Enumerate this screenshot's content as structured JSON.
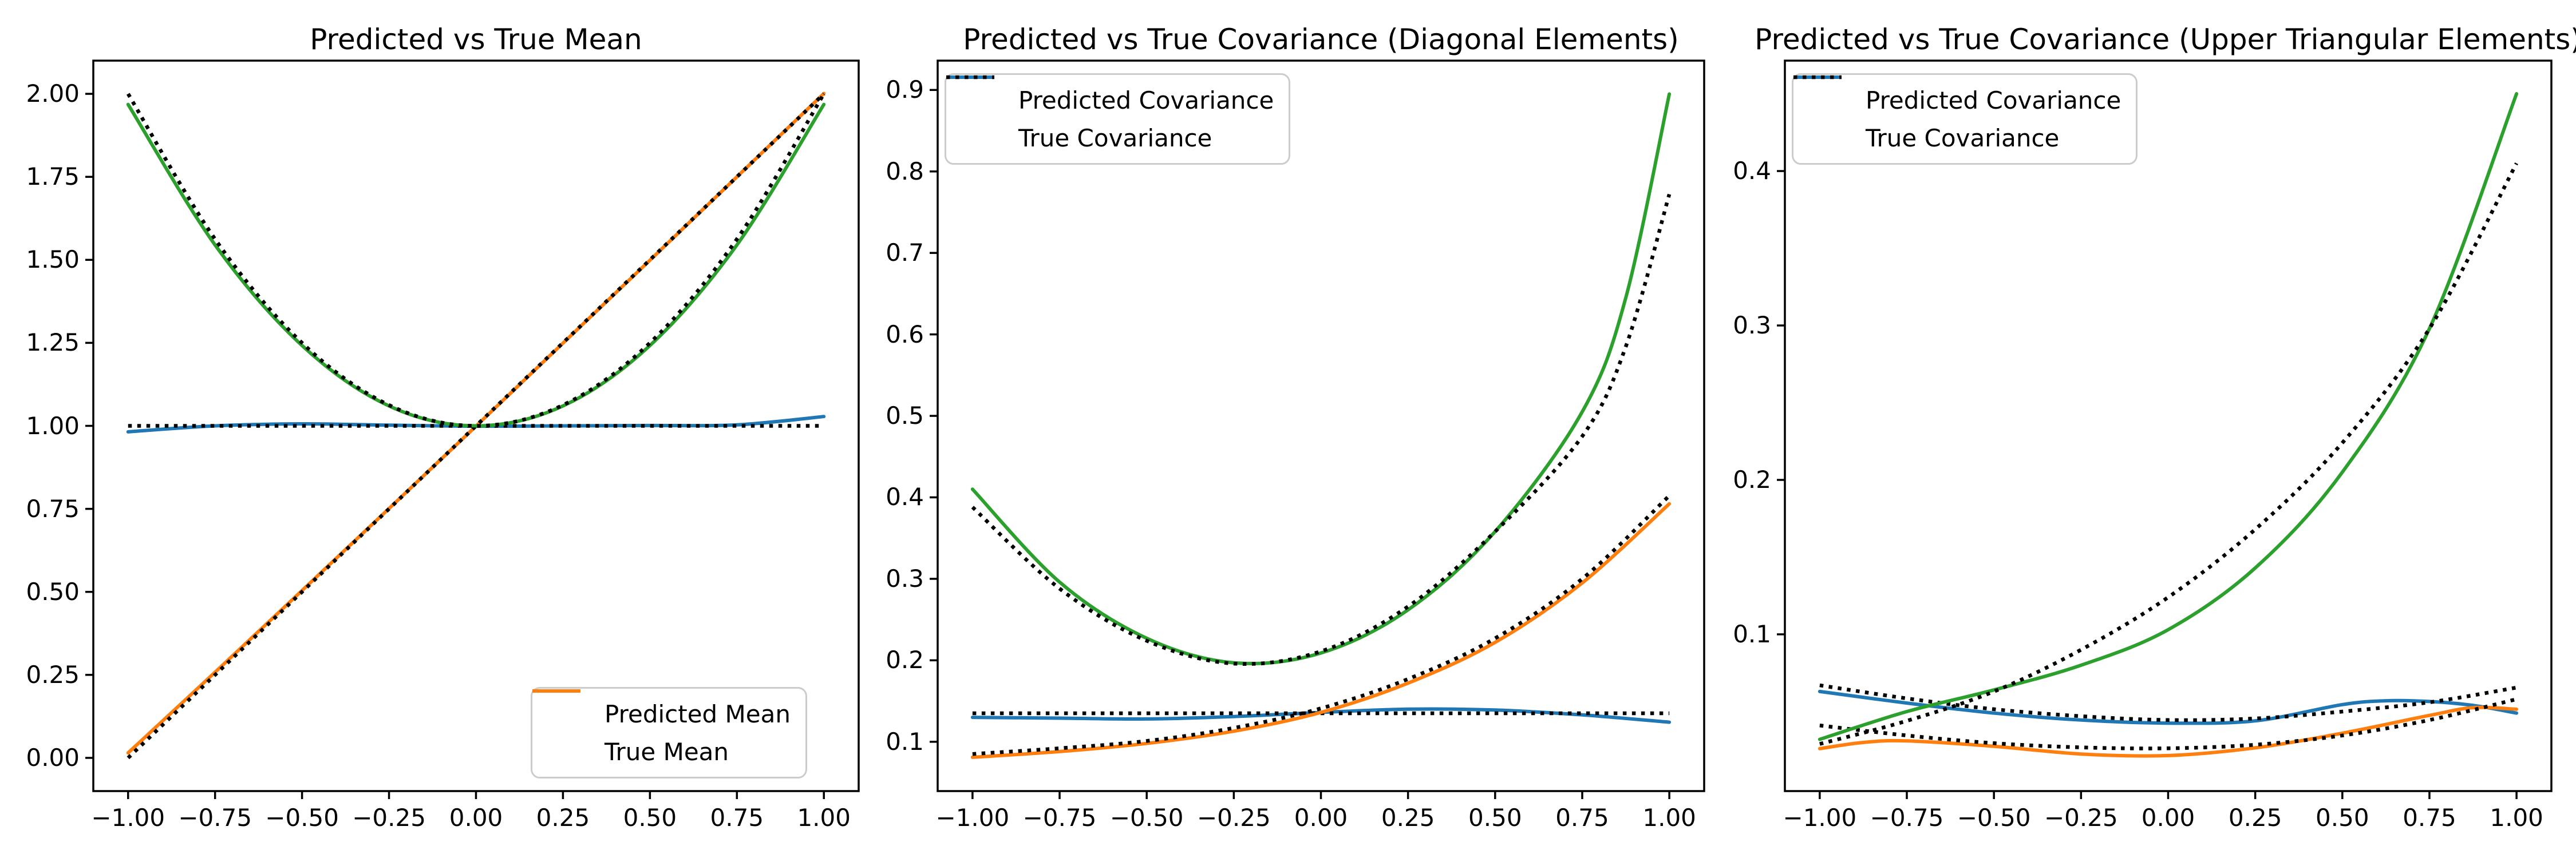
{
  "figure": {
    "background": "#ffffff"
  },
  "colors": {
    "predicted_c0": "#1f77b4",
    "predicted_c1": "#ff7f0e",
    "predicted_c2": "#2ca02c",
    "true_line": "#000000",
    "axis": "#000000",
    "legend_border": "#cccccc"
  },
  "chart_data": [
    {
      "type": "line",
      "title": "Predicted vs True Mean",
      "xlabel": "",
      "ylabel": "",
      "xlim": [
        -1.1,
        1.1
      ],
      "ylim": [
        -0.1,
        2.1
      ],
      "grid": false,
      "xticks": {
        "values": [
          -1,
          -0.75,
          -0.5,
          -0.25,
          0,
          0.25,
          0.5,
          0.75,
          1
        ],
        "labels": [
          "−1.00",
          "−0.75",
          "−0.50",
          "−0.25",
          "0.00",
          "0.25",
          "0.50",
          "0.75",
          "1.00"
        ]
      },
      "yticks": {
        "values": [
          0,
          0.25,
          0.5,
          0.75,
          1,
          1.25,
          1.5,
          1.75,
          2
        ],
        "labels": [
          "0.00",
          "0.25",
          "0.50",
          "0.75",
          "1.00",
          "1.25",
          "1.50",
          "1.75",
          "2.00"
        ]
      },
      "legend": {
        "location": "lower right",
        "entries": [
          {
            "label": "Predicted Mean",
            "color": "#1f77b4",
            "dash": false
          },
          {
            "label": "True Mean",
            "color": "#ff7f0e",
            "dash": false
          }
        ]
      },
      "series": [
        {
          "name": "predicted-mean-dim0",
          "color": "#1f77b4",
          "dash": false,
          "x": [
            -1,
            -0.75,
            -0.5,
            -0.25,
            0,
            0.25,
            0.5,
            0.75,
            1
          ],
          "y": [
            0.982,
            1.0,
            1.006,
            1.002,
            0.999,
            1.0,
            1.001,
            1.003,
            1.028
          ]
        },
        {
          "name": "true-mean-dim0",
          "color": "#000000",
          "dash": true,
          "x": [
            -1,
            1
          ],
          "y": [
            1.0,
            1.0
          ]
        },
        {
          "name": "predicted-mean-dim1",
          "color": "#ff7f0e",
          "dash": false,
          "x": [
            -1,
            -0.75,
            -0.5,
            -0.25,
            0,
            0.25,
            0.5,
            0.75,
            1
          ],
          "y": [
            0.015,
            0.258,
            0.504,
            0.751,
            0.999,
            1.249,
            1.499,
            1.75,
            2.001
          ]
        },
        {
          "name": "true-mean-dim1",
          "color": "#000000",
          "dash": true,
          "x": [
            -1,
            1
          ],
          "y": [
            0.0,
            2.0
          ]
        },
        {
          "name": "predicted-mean-dim2",
          "color": "#2ca02c",
          "dash": false,
          "x": [
            -1,
            -0.75,
            -0.5,
            -0.25,
            0,
            0.25,
            0.5,
            0.75,
            1
          ],
          "y": [
            1.968,
            1.545,
            1.242,
            1.06,
            1.0,
            1.06,
            1.242,
            1.545,
            1.968
          ]
        },
        {
          "name": "true-mean-dim2",
          "color": "#000000",
          "dash": true,
          "x": [
            -1,
            -0.75,
            -0.5,
            -0.25,
            0,
            0.25,
            0.5,
            0.75,
            1
          ],
          "y": [
            2.0,
            1.5625,
            1.25,
            1.0625,
            1.0,
            1.0625,
            1.25,
            1.5625,
            2.0
          ]
        }
      ]
    },
    {
      "type": "line",
      "title": "Predicted vs True Covariance (Diagonal Elements)",
      "xlabel": "",
      "ylabel": "",
      "xlim": [
        -1.1,
        1.1
      ],
      "ylim": [
        0.0395,
        0.936
      ],
      "grid": false,
      "xticks": {
        "values": [
          -1,
          -0.75,
          -0.5,
          -0.25,
          0,
          0.25,
          0.5,
          0.75,
          1
        ],
        "labels": [
          "−1.00",
          "−0.75",
          "−0.50",
          "−0.25",
          "0.00",
          "0.25",
          "0.50",
          "0.75",
          "1.00"
        ]
      },
      "yticks": {
        "values": [
          0.1,
          0.2,
          0.3,
          0.4,
          0.5,
          0.6,
          0.7,
          0.8,
          0.9
        ],
        "labels": [
          "0.1",
          "0.2",
          "0.3",
          "0.4",
          "0.5",
          "0.6",
          "0.7",
          "0.8",
          "0.9"
        ]
      },
      "legend": {
        "location": "upper left",
        "entries": [
          {
            "label": "Predicted Covariance",
            "color": "#1f77b4",
            "dash": false
          },
          {
            "label": "True Covariance",
            "color": "#000000",
            "dash": true
          }
        ]
      },
      "series": [
        {
          "name": "predicted-cov-diag0",
          "color": "#1f77b4",
          "dash": false,
          "x": [
            -1,
            -0.75,
            -0.5,
            -0.25,
            0,
            0.25,
            0.5,
            0.75,
            1
          ],
          "y": [
            0.13,
            0.129,
            0.128,
            0.131,
            0.136,
            0.14,
            0.139,
            0.133,
            0.124
          ]
        },
        {
          "name": "true-cov-diag0",
          "color": "#000000",
          "dash": true,
          "x": [
            -1,
            1
          ],
          "y": [
            0.135,
            0.135
          ]
        },
        {
          "name": "predicted-cov-diag1",
          "color": "#ff7f0e",
          "dash": false,
          "x": [
            -1,
            -0.75,
            -0.5,
            -0.25,
            0,
            0.25,
            0.5,
            0.75,
            1
          ],
          "y": [
            0.081,
            0.088,
            0.098,
            0.113,
            0.136,
            0.172,
            0.222,
            0.295,
            0.392
          ]
        },
        {
          "name": "true-cov-diag1",
          "color": "#000000",
          "dash": true,
          "x": [
            -1,
            -0.75,
            -0.5,
            -0.25,
            0,
            0.25,
            0.5,
            0.75,
            1
          ],
          "y": [
            0.085,
            0.092,
            0.101,
            0.117,
            0.141,
            0.177,
            0.227,
            0.3,
            0.402
          ]
        },
        {
          "name": "predicted-cov-diag2",
          "color": "#2ca02c",
          "dash": false,
          "x": [
            -1,
            -0.75,
            -0.5,
            -0.25,
            0,
            0.25,
            0.5,
            0.75,
            0.875,
            1
          ],
          "y": [
            0.41,
            0.296,
            0.227,
            0.197,
            0.209,
            0.262,
            0.358,
            0.505,
            0.645,
            0.895
          ]
        },
        {
          "name": "true-cov-diag2",
          "color": "#000000",
          "dash": true,
          "x": [
            -1,
            -0.75,
            -0.5,
            -0.25,
            0,
            0.25,
            0.5,
            0.75,
            0.875,
            1
          ],
          "y": [
            0.388,
            0.288,
            0.224,
            0.196,
            0.211,
            0.266,
            0.358,
            0.475,
            0.585,
            0.772
          ]
        }
      ]
    },
    {
      "type": "line",
      "title": "Predicted vs True Covariance (Upper Triangular Elements)",
      "xlabel": "",
      "ylabel": "",
      "xlim": [
        -1.1,
        1.1
      ],
      "ylim": [
        -0.0015,
        0.4715
      ],
      "grid": false,
      "xticks": {
        "values": [
          -1,
          -0.75,
          -0.5,
          -0.25,
          0,
          0.25,
          0.5,
          0.75,
          1
        ],
        "labels": [
          "−1.00",
          "−0.75",
          "−0.50",
          "−0.25",
          "0.00",
          "0.25",
          "0.50",
          "0.75",
          "1.00"
        ]
      },
      "yticks": {
        "values": [
          0.1,
          0.2,
          0.3,
          0.4
        ],
        "labels": [
          "0.1",
          "0.2",
          "0.3",
          "0.4"
        ]
      },
      "legend": {
        "location": "upper left",
        "entries": [
          {
            "label": "Predicted Covariance",
            "color": "#1f77b4",
            "dash": false
          },
          {
            "label": "True Covariance",
            "color": "#000000",
            "dash": true
          }
        ]
      },
      "series": [
        {
          "name": "predicted-cov-offdiag01",
          "color": "#1f77b4",
          "dash": false,
          "x": [
            -1,
            -0.75,
            -0.5,
            -0.25,
            0,
            0.25,
            0.5,
            0.625,
            0.75,
            0.875,
            1
          ],
          "y": [
            0.063,
            0.0555,
            0.049,
            0.0445,
            0.0425,
            0.044,
            0.0545,
            0.057,
            0.0565,
            0.054,
            0.049
          ]
        },
        {
          "name": "true-cov-offdiag01",
          "color": "#000000",
          "dash": true,
          "x": [
            -1,
            -0.75,
            -0.5,
            -0.25,
            0,
            0.25,
            0.5,
            0.75,
            1
          ],
          "y": [
            0.067,
            0.0585,
            0.0515,
            0.047,
            0.0445,
            0.0455,
            0.05,
            0.056,
            0.0655
          ]
        },
        {
          "name": "predicted-cov-offdiag02",
          "color": "#ff7f0e",
          "dash": false,
          "x": [
            -1,
            -0.875,
            -0.75,
            -0.5,
            -0.25,
            0,
            0.25,
            0.5,
            0.75,
            0.875,
            1
          ],
          "y": [
            0.026,
            0.03,
            0.031,
            0.0275,
            0.0225,
            0.0215,
            0.0265,
            0.036,
            0.0475,
            0.0525,
            0.0515
          ]
        },
        {
          "name": "true-cov-offdiag02",
          "color": "#000000",
          "dash": true,
          "x": [
            -1,
            -0.75,
            -0.5,
            -0.25,
            0,
            0.25,
            0.5,
            0.75,
            1
          ],
          "y": [
            0.041,
            0.0345,
            0.0295,
            0.0268,
            0.0262,
            0.0285,
            0.0345,
            0.0445,
            0.058
          ]
        },
        {
          "name": "predicted-cov-offdiag12",
          "color": "#2ca02c",
          "dash": false,
          "x": [
            -1,
            -0.75,
            -0.5,
            -0.25,
            0,
            0.25,
            0.5,
            0.75,
            1
          ],
          "y": [
            0.032,
            0.05,
            0.064,
            0.08,
            0.103,
            0.143,
            0.205,
            0.298,
            0.45
          ]
        },
        {
          "name": "true-cov-offdiag12",
          "color": "#000000",
          "dash": true,
          "x": [
            -1,
            -0.75,
            -0.5,
            -0.25,
            0,
            0.25,
            0.5,
            0.75,
            1
          ],
          "y": [
            0.029,
            0.044,
            0.063,
            0.09,
            0.124,
            0.168,
            0.224,
            0.298,
            0.405
          ]
        }
      ]
    }
  ]
}
